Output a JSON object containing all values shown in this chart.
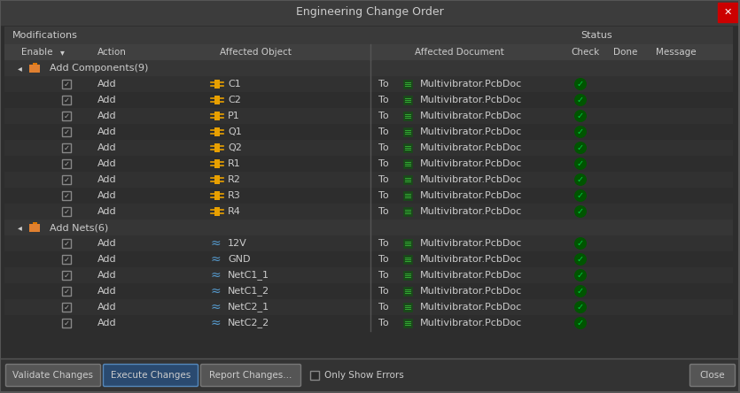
{
  "title": "Engineering Change Order",
  "bg_color": "#2d2d2d",
  "title_bar_color": "#3c3c3c",
  "title_color": "#cccccc",
  "close_btn_color": "#cc0000",
  "header_bg": "#3a3a3a",
  "row_bg_odd": "#2d2d2d",
  "row_bg_even": "#313131",
  "group_row_bg": "#363636",
  "text_color": "#cccccc",
  "green_check_bg": "#005500",
  "green_check_fg": "#00cc44",
  "checkbox_edge": "#888888",
  "checkbox_face": "#2a2a2a",
  "border_color": "#555555",
  "header_text": "Modifications",
  "status_text": "Status",
  "component_group": "Add Components(9)",
  "net_group": "Add Nets(6)",
  "component_rows": [
    {
      "action": "Add",
      "object": "C1",
      "to": "To",
      "doc": "Multivibrator.PcbDoc"
    },
    {
      "action": "Add",
      "object": "C2",
      "to": "To",
      "doc": "Multivibrator.PcbDoc"
    },
    {
      "action": "Add",
      "object": "P1",
      "to": "To",
      "doc": "Multivibrator.PcbDoc"
    },
    {
      "action": "Add",
      "object": "Q1",
      "to": "To",
      "doc": "Multivibrator.PcbDoc"
    },
    {
      "action": "Add",
      "object": "Q2",
      "to": "To",
      "doc": "Multivibrator.PcbDoc"
    },
    {
      "action": "Add",
      "object": "R1",
      "to": "To",
      "doc": "Multivibrator.PcbDoc"
    },
    {
      "action": "Add",
      "object": "R2",
      "to": "To",
      "doc": "Multivibrator.PcbDoc"
    },
    {
      "action": "Add",
      "object": "R3",
      "to": "To",
      "doc": "Multivibrator.PcbDoc"
    },
    {
      "action": "Add",
      "object": "R4",
      "to": "To",
      "doc": "Multivibrator.PcbDoc"
    }
  ],
  "net_rows": [
    {
      "action": "Add",
      "object": "12V",
      "to": "To",
      "doc": "Multivibrator.PcbDoc"
    },
    {
      "action": "Add",
      "object": "GND",
      "to": "To",
      "doc": "Multivibrator.PcbDoc"
    },
    {
      "action": "Add",
      "object": "NetC1_1",
      "to": "To",
      "doc": "Multivibrator.PcbDoc"
    },
    {
      "action": "Add",
      "object": "NetC1_2",
      "to": "To",
      "doc": "Multivibrator.PcbDoc"
    },
    {
      "action": "Add",
      "object": "NetC2_1",
      "to": "To",
      "doc": "Multivibrator.PcbDoc"
    },
    {
      "action": "Add",
      "object": "NetC2_2",
      "to": "To",
      "doc": "Multivibrator.PcbDoc"
    }
  ],
  "figsize": [
    8.35,
    4.44
  ],
  "dpi": 100
}
